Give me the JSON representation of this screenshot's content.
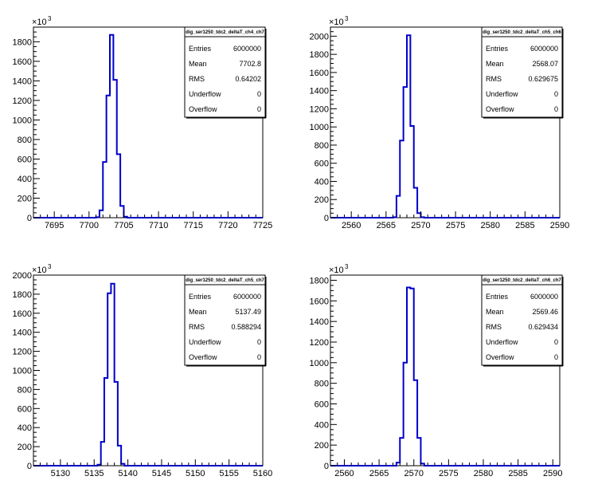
{
  "chart_data": [
    {
      "type": "histogram",
      "stats": {
        "title": "dig_ser1250_tdc2_deltaT_ch4_ch7",
        "rows": [
          [
            "Entries",
            "6000000"
          ],
          [
            "Mean",
            "7702.8"
          ],
          [
            "RMS",
            "0.64202"
          ],
          [
            "Underflow",
            "0"
          ],
          [
            "Overflow",
            "0"
          ]
        ]
      },
      "exponent": "10",
      "exponent_power": "3",
      "xlim": [
        7692,
        7725
      ],
      "ylim": [
        0,
        1950
      ],
      "xticks": [
        7695,
        7700,
        7705,
        7710,
        7715,
        7720,
        7725
      ],
      "yticks": [
        0,
        200,
        400,
        600,
        800,
        1000,
        1200,
        1400,
        1600,
        1800
      ],
      "bin_width": 0.5,
      "bins": [
        [
          7701.0,
          5
        ],
        [
          7701.5,
          75
        ],
        [
          7702.0,
          570
        ],
        [
          7702.5,
          1250
        ],
        [
          7703.0,
          1870
        ],
        [
          7703.5,
          1410
        ],
        [
          7704.0,
          650
        ],
        [
          7704.5,
          120
        ],
        [
          7705.0,
          10
        ]
      ]
    },
    {
      "type": "histogram",
      "stats": {
        "title": "dig_ser1250_tdc2_deltaT_ch5_ch6",
        "rows": [
          [
            "Entries",
            "6000000"
          ],
          [
            "Mean",
            "2568.07"
          ],
          [
            "RMS",
            "0.629675"
          ],
          [
            "Underflow",
            "0"
          ],
          [
            "Overflow",
            "0"
          ]
        ]
      },
      "exponent": "10",
      "exponent_power": "3",
      "xlim": [
        2557,
        2590
      ],
      "ylim": [
        0,
        2100
      ],
      "xticks": [
        2560,
        2565,
        2570,
        2575,
        2580,
        2585,
        2590
      ],
      "yticks": [
        0,
        200,
        400,
        600,
        800,
        1000,
        1200,
        1400,
        1600,
        1800,
        2000
      ],
      "bin_width": 0.5,
      "bins": [
        [
          2566.0,
          5
        ],
        [
          2566.5,
          240
        ],
        [
          2567.0,
          850
        ],
        [
          2567.5,
          1440
        ],
        [
          2568.0,
          2010
        ],
        [
          2568.5,
          1010
        ],
        [
          2569.0,
          330
        ],
        [
          2569.5,
          50
        ],
        [
          2570.0,
          5
        ]
      ]
    },
    {
      "type": "histogram",
      "stats": {
        "title": "dig_ser1250_tdc2_deltaT_ch5_ch7",
        "rows": [
          [
            "Entries",
            "6000000"
          ],
          [
            "Mean",
            "5137.49"
          ],
          [
            "RMS",
            "0.588294"
          ],
          [
            "Underflow",
            "0"
          ],
          [
            "Overflow",
            "0"
          ]
        ]
      },
      "exponent": "10",
      "exponent_power": "3",
      "xlim": [
        5126,
        5160
      ],
      "ylim": [
        0,
        2000
      ],
      "xticks": [
        5130,
        5135,
        5140,
        5145,
        5150,
        5155,
        5160
      ],
      "yticks": [
        0,
        200,
        400,
        600,
        800,
        1000,
        1200,
        1400,
        1600,
        1800,
        2000
      ],
      "bin_width": 0.5,
      "bins": [
        [
          5135.5,
          10
        ],
        [
          5136.0,
          250
        ],
        [
          5136.5,
          920
        ],
        [
          5137.0,
          1810
        ],
        [
          5137.5,
          1910
        ],
        [
          5138.0,
          880
        ],
        [
          5138.5,
          210
        ],
        [
          5139.0,
          20
        ]
      ]
    },
    {
      "type": "histogram",
      "stats": {
        "title": "dig_ser1250_tdc2_deltaT_ch6_ch7",
        "rows": [
          [
            "Entries",
            "6000000"
          ],
          [
            "Mean",
            "2569.46"
          ],
          [
            "RMS",
            "0.629434"
          ],
          [
            "Underflow",
            "0"
          ],
          [
            "Overflow",
            "0"
          ]
        ]
      },
      "exponent": "10",
      "exponent_power": "3",
      "xlim": [
        2558,
        2591
      ],
      "ylim": [
        0,
        1850
      ],
      "xticks": [
        2560,
        2565,
        2570,
        2575,
        2580,
        2585,
        2590
      ],
      "yticks": [
        0,
        200,
        400,
        600,
        800,
        1000,
        1200,
        1400,
        1600,
        1800
      ],
      "bin_width": 0.5,
      "bins": [
        [
          2567.5,
          30
        ],
        [
          2568.0,
          270
        ],
        [
          2568.5,
          1000
        ],
        [
          2569.0,
          1730
        ],
        [
          2569.5,
          1720
        ],
        [
          2570.0,
          830
        ],
        [
          2570.5,
          270
        ],
        [
          2571.0,
          20
        ]
      ]
    }
  ]
}
